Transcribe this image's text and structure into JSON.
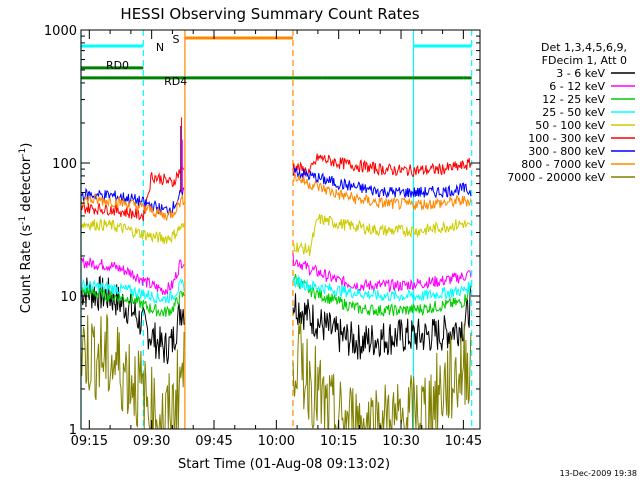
{
  "chart_data": {
    "type": "line",
    "title": "HESSI Observing Summary Count Rates",
    "xlabel": "Start Time (01-Aug-08 09:13:02)",
    "ylabel_main": "Count Rate (s",
    "ylabel_sup1": "-1",
    "ylabel_mid": " detector",
    "ylabel_sup2": "-1",
    "ylabel_end": ")",
    "y_scale": "log",
    "ylim": [
      1,
      1000
    ],
    "xlim": [
      "09:13",
      "10:49"
    ],
    "x_ticks": [
      "09:15",
      "09:30",
      "09:45",
      "10:00",
      "10:15",
      "10:30",
      "10:45"
    ],
    "y_ticks": [
      "1",
      "10",
      "100",
      "1000"
    ],
    "timestamp": "13-Dec-2009 19:38",
    "legend_header": [
      "Det 1,3,4,5,6,9,",
      "FDecim 1, Att 0"
    ],
    "data_gaps": [
      [
        "09:38",
        "10:04"
      ]
    ],
    "series": [
      {
        "name": "3 - 6 keV",
        "color": "#000000",
        "values": [
          [
            "09:13",
            11
          ],
          [
            "09:20",
            10
          ],
          [
            "09:25",
            8
          ],
          [
            "09:30",
            5
          ],
          [
            "09:33",
            4
          ],
          [
            "09:35",
            4.5
          ],
          [
            "09:37",
            8
          ],
          [
            "10:04",
            9
          ],
          [
            "10:08",
            7
          ],
          [
            "10:15",
            5
          ],
          [
            "10:20",
            4.5
          ],
          [
            "10:25",
            4.8
          ],
          [
            "10:30",
            5
          ],
          [
            "10:35",
            5
          ],
          [
            "10:40",
            5.2
          ],
          [
            "10:45",
            6
          ],
          [
            "10:47",
            9
          ]
        ]
      },
      {
        "name": "6 - 12 keV",
        "color": "#ff00ff",
        "values": [
          [
            "09:13",
            18
          ],
          [
            "09:20",
            17
          ],
          [
            "09:25",
            15
          ],
          [
            "09:30",
            12
          ],
          [
            "09:33",
            11
          ],
          [
            "09:35",
            12
          ],
          [
            "09:37",
            18
          ],
          [
            "10:04",
            19
          ],
          [
            "10:08",
            16
          ],
          [
            "10:15",
            13
          ],
          [
            "10:20",
            12
          ],
          [
            "10:25",
            12
          ],
          [
            "10:30",
            12
          ],
          [
            "10:35",
            12.5
          ],
          [
            "10:40",
            13
          ],
          [
            "10:45",
            14
          ],
          [
            "10:47",
            15
          ]
        ]
      },
      {
        "name": "12 - 25 keV",
        "color": "#00cc00",
        "values": [
          [
            "09:13",
            11
          ],
          [
            "09:20",
            10
          ],
          [
            "09:25",
            9.5
          ],
          [
            "09:30",
            8
          ],
          [
            "09:33",
            7.5
          ],
          [
            "09:35",
            8
          ],
          [
            "09:37",
            10
          ],
          [
            "10:04",
            14
          ],
          [
            "10:08",
            11
          ],
          [
            "10:15",
            9
          ],
          [
            "10:20",
            8
          ],
          [
            "10:25",
            7.8
          ],
          [
            "10:30",
            7.8
          ],
          [
            "10:35",
            8
          ],
          [
            "10:40",
            8.5
          ],
          [
            "10:45",
            9
          ],
          [
            "10:47",
            12
          ]
        ]
      },
      {
        "name": "25 - 50 keV",
        "color": "#00ffff",
        "values": [
          [
            "09:13",
            12
          ],
          [
            "09:20",
            11.5
          ],
          [
            "09:25",
            11
          ],
          [
            "09:30",
            10
          ],
          [
            "09:33",
            9.5
          ],
          [
            "09:35",
            10
          ],
          [
            "09:37",
            12
          ],
          [
            "10:04",
            13
          ],
          [
            "10:08",
            12
          ],
          [
            "10:15",
            11
          ],
          [
            "10:20",
            10.5
          ],
          [
            "10:25",
            10
          ],
          [
            "10:30",
            10
          ],
          [
            "10:35",
            10
          ],
          [
            "10:40",
            10.5
          ],
          [
            "10:45",
            11
          ],
          [
            "10:47",
            12
          ]
        ]
      },
      {
        "name": "50 - 100 keV",
        "color": "#cccc00",
        "values": [
          [
            "09:13",
            35
          ],
          [
            "09:20",
            34
          ],
          [
            "09:25",
            31
          ],
          [
            "09:30",
            28
          ],
          [
            "09:33",
            27
          ],
          [
            "09:35",
            28
          ],
          [
            "09:37",
            33
          ],
          [
            "10:04",
            24
          ],
          [
            "10:08",
            22
          ],
          [
            "10:10",
            38
          ],
          [
            "10:15",
            35
          ],
          [
            "10:20",
            33
          ],
          [
            "10:25",
            31
          ],
          [
            "10:30",
            31
          ],
          [
            "10:35",
            31
          ],
          [
            "10:40",
            33
          ],
          [
            "10:45",
            35
          ],
          [
            "10:47",
            32
          ]
        ]
      },
      {
        "name": "100 - 300 keV",
        "color": "#ff0000",
        "values": [
          [
            "09:13",
            46
          ],
          [
            "09:20",
            45
          ],
          [
            "09:25",
            42
          ],
          [
            "09:28",
            40
          ],
          [
            "09:30",
            80
          ],
          [
            "09:33",
            75
          ],
          [
            "09:35",
            70
          ],
          [
            "09:37",
            90
          ],
          [
            "10:04",
            95
          ],
          [
            "10:08",
            85
          ],
          [
            "10:10",
            110
          ],
          [
            "10:15",
            100
          ],
          [
            "10:20",
            95
          ],
          [
            "10:25",
            90
          ],
          [
            "10:30",
            88
          ],
          [
            "10:35",
            88
          ],
          [
            "10:40",
            90
          ],
          [
            "10:45",
            95
          ],
          [
            "10:47",
            100
          ]
        ]
      },
      {
        "name": "300 - 800 keV",
        "color": "#0000ff",
        "values": [
          [
            "09:13",
            58
          ],
          [
            "09:20",
            57
          ],
          [
            "09:25",
            54
          ],
          [
            "09:30",
            48
          ],
          [
            "09:33",
            44
          ],
          [
            "09:35",
            46
          ],
          [
            "09:37",
            58
          ],
          [
            "10:04",
            88
          ],
          [
            "10:08",
            80
          ],
          [
            "10:15",
            70
          ],
          [
            "10:20",
            65
          ],
          [
            "10:25",
            61
          ],
          [
            "10:30",
            60
          ],
          [
            "10:35",
            60
          ],
          [
            "10:40",
            61
          ],
          [
            "10:45",
            64
          ],
          [
            "10:47",
            60
          ]
        ]
      },
      {
        "name": "800 - 7000 keV",
        "color": "#ff8800",
        "values": [
          [
            "09:13",
            53
          ],
          [
            "09:20",
            52
          ],
          [
            "09:25",
            49
          ],
          [
            "09:30",
            44
          ],
          [
            "09:33",
            40
          ],
          [
            "09:35",
            42
          ],
          [
            "09:37",
            52
          ],
          [
            "10:04",
            80
          ],
          [
            "10:08",
            70
          ],
          [
            "10:15",
            58
          ],
          [
            "10:20",
            53
          ],
          [
            "10:25",
            50
          ],
          [
            "10:30",
            49
          ],
          [
            "10:35",
            49
          ],
          [
            "10:40",
            50
          ],
          [
            "10:45",
            52
          ],
          [
            "10:47",
            52
          ]
        ]
      },
      {
        "name": "7000 - 20000 keV",
        "color": "#808000",
        "values": [
          [
            "09:13",
            4
          ],
          [
            "09:18",
            3.5
          ],
          [
            "09:22",
            3
          ],
          [
            "09:25",
            2.5
          ],
          [
            "09:27",
            2
          ],
          [
            "09:29",
            1.5
          ],
          [
            "09:31",
            1.2
          ],
          [
            "09:33",
            1.1
          ],
          [
            "09:35",
            1.3
          ],
          [
            "09:37",
            2.5
          ],
          [
            "10:04",
            4
          ],
          [
            "10:06",
            3
          ],
          [
            "10:08",
            2.5
          ],
          [
            "10:10",
            1.8
          ],
          [
            "10:12",
            1.3
          ],
          [
            "10:15",
            1.1
          ],
          [
            "10:20",
            1.05
          ],
          [
            "10:25",
            1.05
          ],
          [
            "10:30",
            1.1
          ],
          [
            "10:35",
            1.3
          ],
          [
            "10:38",
            1.6
          ],
          [
            "10:40",
            2
          ],
          [
            "10:43",
            2.5
          ],
          [
            "10:47",
            3.5
          ]
        ]
      }
    ],
    "flags": [
      {
        "name": "N",
        "color": "#00ffff",
        "level": 0.96,
        "intervals": [
          [
            "09:13",
            "09:28"
          ],
          [
            "10:33",
            "10:47"
          ]
        ]
      },
      {
        "name": "S",
        "color": "#ff8800",
        "level": 0.98,
        "intervals": [
          [
            "09:38",
            "10:04"
          ]
        ]
      },
      {
        "name": "RD0",
        "color": "#008000",
        "level": 0.905,
        "intervals": [
          [
            "09:13",
            "09:28"
          ]
        ]
      },
      {
        "name": "RD4",
        "color": "#008000",
        "level": 0.88,
        "intervals": [
          [
            "09:13",
            "10:04"
          ],
          [
            "10:04",
            "10:11"
          ],
          [
            "10:11",
            "10:45"
          ],
          [
            "10:45",
            "10:47"
          ]
        ]
      }
    ],
    "flag_labels": [
      {
        "text": "N",
        "at": "09:31",
        "level": 0.955,
        "color": "#00aaff"
      },
      {
        "text": "S",
        "at": "09:35",
        "level": 0.975,
        "color": "#ff8800"
      },
      {
        "text": "RD0",
        "at": "09:19",
        "level": 0.91,
        "color": "#000000"
      },
      {
        "text": "RD4",
        "at": "09:33",
        "level": 0.87,
        "color": "#000000"
      }
    ],
    "vlines": [
      {
        "at": "09:13",
        "color": "#00ffff",
        "style": "solid"
      },
      {
        "at": "09:28",
        "color": "#00ffff",
        "style": "dashed"
      },
      {
        "at": "09:38",
        "color": "#ff8800",
        "style": "solid"
      },
      {
        "at": "10:04",
        "color": "#ff8800",
        "style": "dashed"
      },
      {
        "at": "10:33",
        "color": "#00ffff",
        "style": "solid"
      },
      {
        "at": "10:47",
        "color": "#00ffff",
        "style": "dashed"
      }
    ]
  }
}
